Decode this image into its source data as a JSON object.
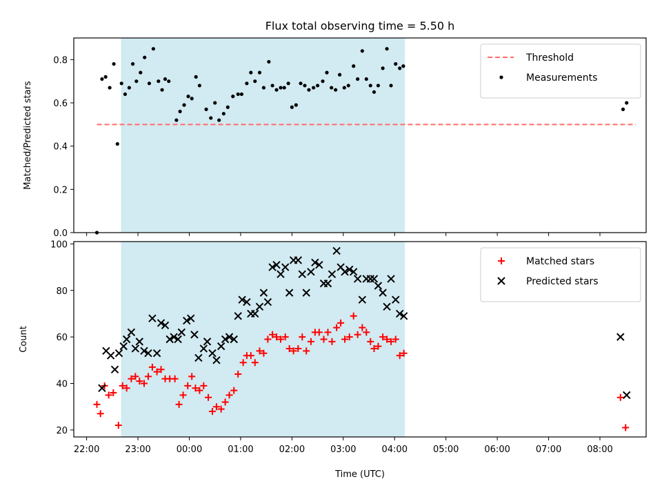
{
  "chart_data": {
    "type": "scatter",
    "title": "Flux total observing time = 5.50 h",
    "xlabel": "Time (UTC)",
    "x_ticks": [
      "22:00",
      "23:00",
      "00:00",
      "01:00",
      "02:00",
      "03:00",
      "04:00",
      "05:00",
      "06:00",
      "07:00",
      "08:00"
    ],
    "x_range_hours": [
      21.75,
      32.9
    ],
    "shaded_interval_hours": [
      22.67,
      28.2
    ],
    "shade_color": "#add8e6",
    "panels": [
      {
        "ylabel": "Matched/Predicted stars",
        "ylim": [
          0,
          0.9
        ],
        "yticks": [
          "0.0",
          "0.2",
          "0.4",
          "0.6",
          "0.8"
        ],
        "legend_position": "upper right",
        "threshold": {
          "name": "Threshold",
          "y": 0.5,
          "x_range": [
            22.2,
            32.7
          ],
          "color": "#ff6b6b"
        },
        "series": [
          {
            "name": "Measurements",
            "color": "#000000",
            "marker": "dot",
            "points": [
              [
                22.2,
                0.0
              ],
              [
                22.3,
                0.71
              ],
              [
                22.37,
                0.72
              ],
              [
                22.45,
                0.67
              ],
              [
                22.53,
                0.78
              ],
              [
                22.6,
                0.41
              ],
              [
                22.68,
                0.69
              ],
              [
                22.75,
                0.64
              ],
              [
                22.83,
                0.67
              ],
              [
                22.9,
                0.78
              ],
              [
                22.97,
                0.7
              ],
              [
                23.05,
                0.74
              ],
              [
                23.13,
                0.81
              ],
              [
                23.22,
                0.69
              ],
              [
                23.3,
                0.85
              ],
              [
                23.4,
                0.7
              ],
              [
                23.47,
                0.66
              ],
              [
                23.53,
                0.71
              ],
              [
                23.6,
                0.7
              ],
              [
                23.75,
                0.52
              ],
              [
                23.82,
                0.56
              ],
              [
                23.9,
                0.59
              ],
              [
                23.98,
                0.63
              ],
              [
                24.05,
                0.62
              ],
              [
                24.13,
                0.72
              ],
              [
                24.2,
                0.68
              ],
              [
                24.33,
                0.57
              ],
              [
                24.42,
                0.53
              ],
              [
                24.5,
                0.6
              ],
              [
                24.58,
                0.52
              ],
              [
                24.67,
                0.55
              ],
              [
                24.75,
                0.58
              ],
              [
                24.85,
                0.63
              ],
              [
                24.95,
                0.64
              ],
              [
                25.02,
                0.64
              ],
              [
                25.12,
                0.69
              ],
              [
                25.2,
                0.74
              ],
              [
                25.28,
                0.7
              ],
              [
                25.37,
                0.74
              ],
              [
                25.45,
                0.67
              ],
              [
                25.55,
                0.79
              ],
              [
                25.62,
                0.68
              ],
              [
                25.7,
                0.66
              ],
              [
                25.78,
                0.67
              ],
              [
                25.85,
                0.67
              ],
              [
                25.93,
                0.69
              ],
              [
                26.0,
                0.58
              ],
              [
                26.08,
                0.59
              ],
              [
                26.17,
                0.69
              ],
              [
                26.25,
                0.68
              ],
              [
                26.33,
                0.66
              ],
              [
                26.42,
                0.67
              ],
              [
                26.5,
                0.68
              ],
              [
                26.6,
                0.7
              ],
              [
                26.68,
                0.74
              ],
              [
                26.77,
                0.67
              ],
              [
                26.85,
                0.66
              ],
              [
                26.93,
                0.73
              ],
              [
                27.02,
                0.67
              ],
              [
                27.1,
                0.68
              ],
              [
                27.2,
                0.77
              ],
              [
                27.28,
                0.71
              ],
              [
                27.37,
                0.84
              ],
              [
                27.45,
                0.71
              ],
              [
                27.53,
                0.68
              ],
              [
                27.6,
                0.65
              ],
              [
                27.68,
                0.68
              ],
              [
                27.77,
                0.76
              ],
              [
                27.85,
                0.85
              ],
              [
                27.93,
                0.68
              ],
              [
                28.02,
                0.78
              ],
              [
                28.1,
                0.76
              ],
              [
                28.17,
                0.77
              ],
              [
                32.45,
                0.57
              ],
              [
                32.52,
                0.6
              ]
            ]
          }
        ]
      },
      {
        "ylabel": "Count",
        "ylim": [
          17,
          101
        ],
        "yticks": [
          "20",
          "40",
          "60",
          "80",
          "100"
        ],
        "legend_position": "upper right",
        "series": [
          {
            "name": "Matched stars",
            "color": "#ff0000",
            "marker": "plus",
            "points": [
              [
                22.2,
                31
              ],
              [
                22.27,
                27
              ],
              [
                22.35,
                39
              ],
              [
                22.43,
                35
              ],
              [
                22.52,
                36
              ],
              [
                22.62,
                22
              ],
              [
                22.7,
                39
              ],
              [
                22.78,
                38
              ],
              [
                22.87,
                42
              ],
              [
                22.95,
                43
              ],
              [
                23.03,
                41
              ],
              [
                23.12,
                40
              ],
              [
                23.2,
                43
              ],
              [
                23.28,
                47
              ],
              [
                23.37,
                45
              ],
              [
                23.45,
                46
              ],
              [
                23.53,
                42
              ],
              [
                23.62,
                42
              ],
              [
                23.72,
                42
              ],
              [
                23.8,
                31
              ],
              [
                23.88,
                35
              ],
              [
                23.97,
                39
              ],
              [
                24.05,
                43
              ],
              [
                24.12,
                38
              ],
              [
                24.2,
                37
              ],
              [
                24.28,
                39
              ],
              [
                24.37,
                34
              ],
              [
                24.45,
                28
              ],
              [
                24.53,
                30
              ],
              [
                24.62,
                29
              ],
              [
                24.7,
                32
              ],
              [
                24.78,
                35
              ],
              [
                24.87,
                37
              ],
              [
                24.95,
                44
              ],
              [
                25.05,
                49
              ],
              [
                25.12,
                52
              ],
              [
                25.2,
                52
              ],
              [
                25.28,
                49
              ],
              [
                25.37,
                54
              ],
              [
                25.45,
                53
              ],
              [
                25.53,
                59
              ],
              [
                25.62,
                61
              ],
              [
                25.7,
                60
              ],
              [
                25.78,
                59
              ],
              [
                25.87,
                60
              ],
              [
                25.95,
                55
              ],
              [
                26.03,
                54
              ],
              [
                26.12,
                55
              ],
              [
                26.2,
                60
              ],
              [
                26.28,
                54
              ],
              [
                26.37,
                58
              ],
              [
                26.45,
                62
              ],
              [
                26.53,
                62
              ],
              [
                26.62,
                59
              ],
              [
                26.7,
                62
              ],
              [
                26.78,
                58
              ],
              [
                26.87,
                64
              ],
              [
                26.95,
                66
              ],
              [
                27.03,
                59
              ],
              [
                27.12,
                60
              ],
              [
                27.2,
                69
              ],
              [
                27.28,
                61
              ],
              [
                27.37,
                64
              ],
              [
                27.45,
                62
              ],
              [
                27.53,
                58
              ],
              [
                27.6,
                55
              ],
              [
                27.68,
                56
              ],
              [
                27.77,
                60
              ],
              [
                27.85,
                59
              ],
              [
                27.93,
                58
              ],
              [
                28.02,
                59
              ],
              [
                28.1,
                52
              ],
              [
                28.18,
                53
              ],
              [
                32.4,
                34
              ],
              [
                32.5,
                21
              ]
            ]
          },
          {
            "name": "Predicted stars",
            "color": "#000000",
            "marker": "x",
            "points": [
              [
                22.3,
                38
              ],
              [
                22.38,
                54
              ],
              [
                22.47,
                52
              ],
              [
                22.55,
                46
              ],
              [
                22.63,
                53
              ],
              [
                22.72,
                56
              ],
              [
                22.78,
                59
              ],
              [
                22.87,
                62
              ],
              [
                22.95,
                55
              ],
              [
                23.03,
                58
              ],
              [
                23.12,
                54
              ],
              [
                23.2,
                53
              ],
              [
                23.28,
                68
              ],
              [
                23.37,
                53
              ],
              [
                23.45,
                66
              ],
              [
                23.53,
                65
              ],
              [
                23.62,
                59
              ],
              [
                23.7,
                60
              ],
              [
                23.78,
                59
              ],
              [
                23.85,
                62
              ],
              [
                23.95,
                67
              ],
              [
                24.03,
                68
              ],
              [
                24.1,
                61
              ],
              [
                24.18,
                51
              ],
              [
                24.28,
                55
              ],
              [
                24.35,
                58
              ],
              [
                24.45,
                53
              ],
              [
                24.53,
                50
              ],
              [
                24.62,
                56
              ],
              [
                24.7,
                59
              ],
              [
                24.78,
                60
              ],
              [
                24.87,
                59
              ],
              [
                24.95,
                69
              ],
              [
                25.03,
                76
              ],
              [
                25.12,
                75
              ],
              [
                25.2,
                70
              ],
              [
                25.28,
                70
              ],
              [
                25.37,
                73
              ],
              [
                25.45,
                79
              ],
              [
                25.53,
                75
              ],
              [
                25.62,
                90
              ],
              [
                25.7,
                91
              ],
              [
                25.78,
                87
              ],
              [
                25.87,
                90
              ],
              [
                25.95,
                79
              ],
              [
                26.03,
                93
              ],
              [
                26.12,
                93
              ],
              [
                26.2,
                87
              ],
              [
                26.28,
                79
              ],
              [
                26.37,
                88
              ],
              [
                26.45,
                92
              ],
              [
                26.53,
                91
              ],
              [
                26.62,
                83
              ],
              [
                26.7,
                83
              ],
              [
                26.78,
                87
              ],
              [
                26.87,
                97
              ],
              [
                26.95,
                90
              ],
              [
                27.03,
                88
              ],
              [
                27.12,
                89
              ],
              [
                27.2,
                88
              ],
              [
                27.28,
                85
              ],
              [
                27.37,
                76
              ],
              [
                27.45,
                85
              ],
              [
                27.53,
                85
              ],
              [
                27.6,
                85
              ],
              [
                27.68,
                82
              ],
              [
                27.77,
                79
              ],
              [
                27.85,
                73
              ],
              [
                27.93,
                85
              ],
              [
                28.02,
                76
              ],
              [
                28.1,
                70
              ],
              [
                28.18,
                69
              ],
              [
                32.4,
                60
              ],
              [
                32.52,
                35
              ]
            ]
          }
        ]
      }
    ]
  }
}
